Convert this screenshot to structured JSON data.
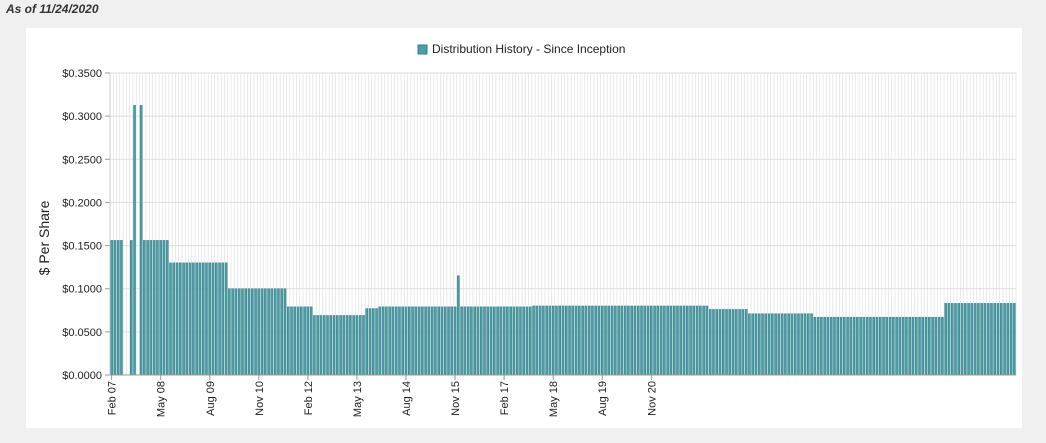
{
  "header": {
    "as_of": "As of 11/24/2020"
  },
  "colors": {
    "bar": "#4a9ea8",
    "bar_stroke": "#2f7f89",
    "grid": "#dddddd"
  },
  "chart_data": {
    "type": "bar",
    "legend": {
      "label": "Distribution History - Since Inception",
      "position": "top-center"
    },
    "ylabel": "$ Per Share",
    "xlabel": "",
    "ylim": [
      0,
      0.35
    ],
    "yticks": [
      "$0.0000",
      "$0.0500",
      "$0.1000",
      "$0.1500",
      "$0.2000",
      "$0.2500",
      "$0.3000",
      "$0.3500"
    ],
    "xticks": [
      "Feb 07",
      "May 08",
      "Aug 09",
      "Nov 10",
      "Feb 12",
      "May 13",
      "Aug 14",
      "Nov 15",
      "Feb 17",
      "May 18",
      "Aug 19",
      "Nov 20"
    ],
    "grid": true,
    "values": [
      0.156,
      0.156,
      0.156,
      0.156,
      0,
      0,
      0.156,
      0.3125,
      0,
      0.3125,
      0.156,
      0.156,
      0.156,
      0.156,
      0.156,
      0.156,
      0.156,
      0.156,
      0.13,
      0.13,
      0.13,
      0.13,
      0.13,
      0.13,
      0.13,
      0.13,
      0.13,
      0.13,
      0.13,
      0.13,
      0.13,
      0.13,
      0.13,
      0.13,
      0.13,
      0.13,
      0.1,
      0.1,
      0.1,
      0.1,
      0.1,
      0.1,
      0.1,
      0.1,
      0.1,
      0.1,
      0.1,
      0.1,
      0.1,
      0.1,
      0.1,
      0.1,
      0.1,
      0.1,
      0.079,
      0.079,
      0.079,
      0.079,
      0.079,
      0.079,
      0.079,
      0.079,
      0.069,
      0.069,
      0.069,
      0.069,
      0.069,
      0.069,
      0.069,
      0.069,
      0.069,
      0.069,
      0.069,
      0.069,
      0.069,
      0.069,
      0.069,
      0.069,
      0.077,
      0.077,
      0.077,
      0.077,
      0.079,
      0.079,
      0.079,
      0.079,
      0.079,
      0.079,
      0.079,
      0.079,
      0.079,
      0.079,
      0.079,
      0.079,
      0.079,
      0.079,
      0.079,
      0.079,
      0.079,
      0.079,
      0.079,
      0.079,
      0.079,
      0.079,
      0.079,
      0.079,
      0.115,
      0.079,
      0.079,
      0.079,
      0.079,
      0.079,
      0.079,
      0.079,
      0.079,
      0.079,
      0.079,
      0.079,
      0.079,
      0.079,
      0.079,
      0.079,
      0.079,
      0.079,
      0.079,
      0.079,
      0.079,
      0.079,
      0.079,
      0.08,
      0.08,
      0.08,
      0.08,
      0.08,
      0.08,
      0.08,
      0.08,
      0.08,
      0.08,
      0.08,
      0.08,
      0.08,
      0.08,
      0.08,
      0.08,
      0.08,
      0.08,
      0.08,
      0.08,
      0.08,
      0.08,
      0.08,
      0.08,
      0.08,
      0.08,
      0.08,
      0.08,
      0.08,
      0.08,
      0.08,
      0.08,
      0.08,
      0.08,
      0.08,
      0.08,
      0.08,
      0.08,
      0.08,
      0.08,
      0.08,
      0.08,
      0.08,
      0.08,
      0.08,
      0.08,
      0.08,
      0.08,
      0.08,
      0.08,
      0.08,
      0.08,
      0.08,
      0.08,
      0.076,
      0.076,
      0.076,
      0.076,
      0.076,
      0.076,
      0.076,
      0.076,
      0.076,
      0.076,
      0.076,
      0.076,
      0.071,
      0.071,
      0.071,
      0.071,
      0.071,
      0.071,
      0.071,
      0.071,
      0.071,
      0.071,
      0.071,
      0.071,
      0.071,
      0.071,
      0.071,
      0.071,
      0.071,
      0.071,
      0.071,
      0.071,
      0.067,
      0.067,
      0.067,
      0.067,
      0.067,
      0.067,
      0.067,
      0.067,
      0.067,
      0.067,
      0.067,
      0.067,
      0.067,
      0.067,
      0.067,
      0.067,
      0.067,
      0.067,
      0.067,
      0.067,
      0.067,
      0.067,
      0.067,
      0.067,
      0.067,
      0.067,
      0.067,
      0.067,
      0.067,
      0.067,
      0.067,
      0.067,
      0.067,
      0.067,
      0.067,
      0.067,
      0.067,
      0.067,
      0.067,
      0.067,
      0.083,
      0.083,
      0.083,
      0.083,
      0.083,
      0.083,
      0.083,
      0.083,
      0.083,
      0.083,
      0.083,
      0.083,
      0.083,
      0.083,
      0.083,
      0.083,
      0.083,
      0.083,
      0.083,
      0.083,
      0.083,
      0.083
    ]
  }
}
